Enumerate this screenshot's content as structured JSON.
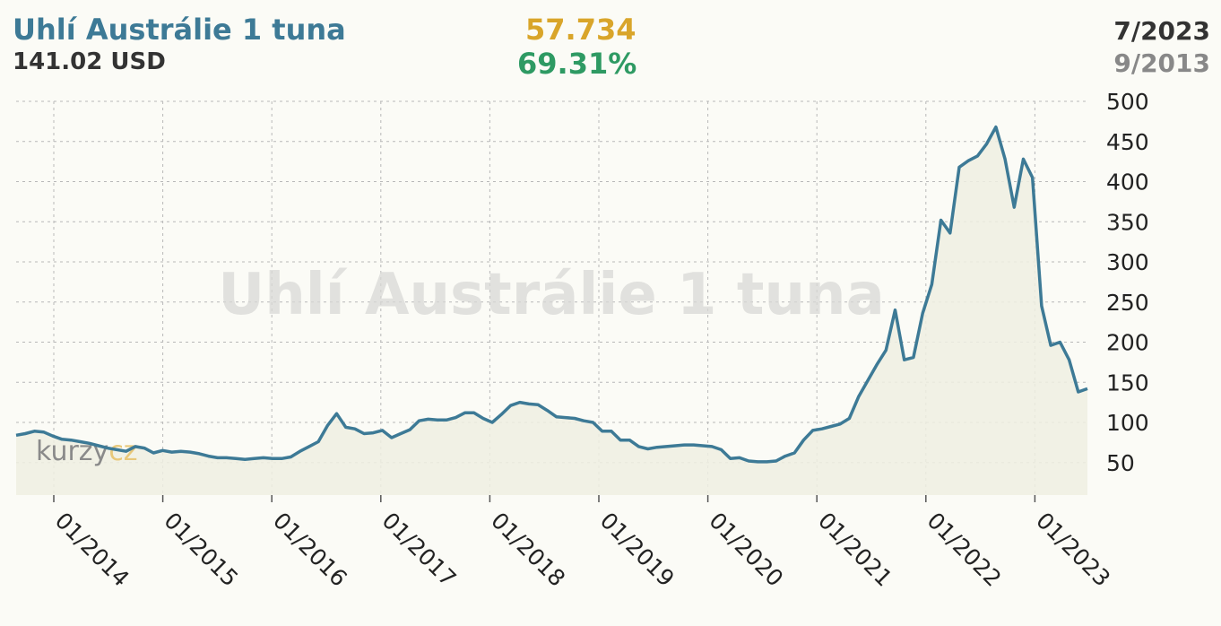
{
  "header": {
    "title": "Uhlí Austrálie 1 tuna",
    "price": "141.02 USD",
    "change_abs": "57.734",
    "change_pct": "69.31%",
    "date_end": "7/2023",
    "date_start": "9/2013"
  },
  "watermark": "Uhlí Austrálie 1 tuna",
  "logo": {
    "part1": "kurzy",
    "part2": "cz"
  },
  "colors": {
    "line": "#3d7a96",
    "title": "#3d7a96",
    "change_abs": "#d9a52a",
    "change_pct": "#2e9a63",
    "area": "#eeeee2"
  },
  "chart_data": {
    "type": "area",
    "title": "Uhlí Austrálie 1 tuna",
    "xlabel": "",
    "ylabel": "",
    "ylim": [
      0,
      500
    ],
    "yticks": [
      50,
      100,
      150,
      200,
      250,
      300,
      350,
      400,
      450,
      500
    ],
    "xticks": [
      "01/2014",
      "01/2015",
      "01/2016",
      "01/2017",
      "01/2018",
      "01/2019",
      "01/2020",
      "01/2021",
      "01/2022",
      "01/2023"
    ],
    "grid": true,
    "start": "2013-09",
    "end": "2023-07",
    "series": [
      {
        "values": [
          84,
          86,
          89,
          88,
          83,
          79,
          78,
          76,
          74,
          71,
          68,
          66,
          64,
          70,
          68,
          62,
          65,
          63,
          64,
          63,
          61,
          58,
          56,
          56,
          55,
          54,
          55,
          56,
          55,
          55,
          57,
          64,
          70,
          76,
          96,
          111,
          94,
          92,
          86,
          87,
          90,
          81,
          86,
          91,
          102,
          104,
          103,
          103,
          106,
          112,
          112,
          105,
          100,
          110,
          121,
          125,
          123,
          122,
          115,
          107,
          106,
          105,
          102,
          100,
          89,
          89,
          78,
          78,
          70,
          67,
          69,
          70,
          71,
          72,
          72,
          71,
          70,
          66,
          55,
          56,
          52,
          51,
          51,
          52,
          58,
          62,
          78,
          90,
          92,
          95,
          98,
          105,
          132,
          152,
          172,
          190,
          240,
          178,
          181,
          236,
          272,
          352,
          336,
          418,
          426,
          432,
          447,
          468,
          428,
          368,
          428,
          405,
          245,
          196,
          200,
          178,
          138,
          142
        ]
      }
    ]
  }
}
